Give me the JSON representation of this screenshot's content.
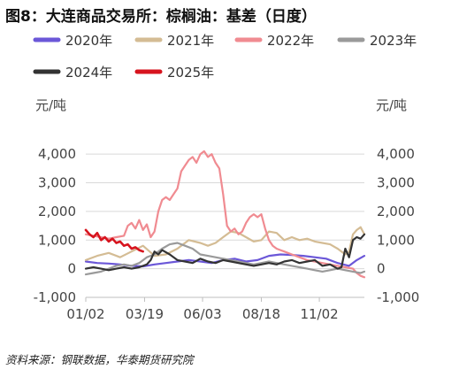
{
  "title": "图8：大连商品交易所：棕榈油：基差（日度）",
  "source": "资料来源：钢联数据，华泰期货研究院",
  "chart_data": {
    "type": "line",
    "title": "图8：大连商品交易所：棕榈油：基差（日度）",
    "unit_left": "元/吨",
    "unit_right": "元/吨",
    "ylim": [
      -1000,
      4500
    ],
    "yticks": [
      -1000,
      0,
      1000,
      2000,
      3000,
      4000
    ],
    "ytick_labels": [
      "-1,000",
      "0",
      "1,000",
      "2,000",
      "3,000",
      "4,000"
    ],
    "xticks": [
      0,
      77,
      153,
      230,
      306
    ],
    "xtick_labels": [
      "01/02",
      "03/19",
      "06/03",
      "08/18",
      "11/02"
    ],
    "xlim": [
      0,
      365
    ],
    "grid": true,
    "legend_position": "top",
    "series": [
      {
        "name": "2020年",
        "color": "#6b57d8",
        "x": [
          0,
          15,
          30,
          45,
          60,
          75,
          90,
          105,
          120,
          135,
          150,
          165,
          180,
          195,
          210,
          225,
          240,
          255,
          270,
          285,
          300,
          315,
          330,
          345,
          355,
          365
        ],
        "y": [
          250,
          200,
          180,
          150,
          100,
          80,
          150,
          200,
          250,
          300,
          250,
          200,
          300,
          350,
          250,
          300,
          450,
          500,
          480,
          450,
          400,
          350,
          200,
          100,
          300,
          450
        ]
      },
      {
        "name": "2021年",
        "color": "#d4bc94",
        "x": [
          0,
          15,
          30,
          45,
          60,
          75,
          90,
          105,
          120,
          135,
          150,
          160,
          170,
          180,
          190,
          200,
          210,
          220,
          230,
          240,
          250,
          260,
          270,
          280,
          290,
          300,
          310,
          320,
          330,
          340,
          345,
          350,
          355,
          360,
          365
        ],
        "y": [
          300,
          450,
          550,
          400,
          600,
          800,
          450,
          500,
          700,
          1000,
          900,
          800,
          900,
          1100,
          1300,
          1250,
          1100,
          950,
          1000,
          1300,
          1250,
          1000,
          1100,
          1000,
          1050,
          950,
          900,
          850,
          700,
          500,
          600,
          1200,
          1350,
          1450,
          1200
        ]
      },
      {
        "name": "2022年",
        "color": "#f08b91",
        "x": [
          0,
          10,
          20,
          30,
          40,
          50,
          55,
          60,
          65,
          70,
          75,
          80,
          85,
          90,
          95,
          100,
          105,
          110,
          115,
          120,
          125,
          130,
          135,
          140,
          145,
          150,
          155,
          160,
          165,
          170,
          175,
          180,
          185,
          190,
          195,
          200,
          205,
          210,
          215,
          220,
          225,
          230,
          235,
          240,
          245,
          250,
          255,
          260,
          270,
          280,
          290,
          300,
          310,
          320,
          330,
          340,
          350,
          355,
          360,
          365
        ],
        "y": [
          1200,
          1150,
          1100,
          1050,
          1100,
          1150,
          1500,
          1600,
          1400,
          1700,
          1350,
          1550,
          1100,
          1300,
          2000,
          2400,
          2500,
          2400,
          2600,
          2800,
          3400,
          3600,
          3800,
          3900,
          3700,
          4000,
          4100,
          3900,
          4000,
          3700,
          3500,
          2600,
          1500,
          1300,
          1400,
          1200,
          1300,
          1600,
          1800,
          1900,
          1800,
          1900,
          1400,
          1000,
          800,
          700,
          650,
          600,
          500,
          400,
          300,
          250,
          200,
          150,
          100,
          50,
          0,
          -150,
          -250,
          -300
        ]
      },
      {
        "name": "2023年",
        "color": "#9a9a9a",
        "x": [
          0,
          10,
          20,
          30,
          40,
          50,
          60,
          70,
          80,
          90,
          100,
          110,
          120,
          130,
          140,
          150,
          160,
          170,
          180,
          190,
          200,
          210,
          220,
          230,
          240,
          250,
          260,
          270,
          280,
          290,
          300,
          310,
          320,
          330,
          340,
          350,
          360,
          365
        ],
        "y": [
          -200,
          -150,
          -100,
          0,
          100,
          150,
          100,
          200,
          400,
          500,
          700,
          850,
          900,
          800,
          700,
          500,
          450,
          400,
          350,
          300,
          250,
          200,
          150,
          200,
          250,
          200,
          150,
          100,
          50,
          0,
          -50,
          -100,
          -50,
          0,
          -50,
          -100,
          -150,
          -100
        ]
      },
      {
        "name": "2024年",
        "color": "#333333",
        "x": [
          0,
          10,
          20,
          30,
          40,
          50,
          60,
          70,
          80,
          85,
          90,
          95,
          100,
          110,
          120,
          130,
          140,
          150,
          160,
          170,
          180,
          190,
          200,
          210,
          220,
          230,
          240,
          250,
          260,
          270,
          280,
          290,
          300,
          310,
          320,
          330,
          335,
          340,
          345,
          350,
          355,
          360,
          365
        ],
        "y": [
          0,
          50,
          0,
          -50,
          0,
          50,
          0,
          50,
          150,
          300,
          600,
          500,
          650,
          500,
          300,
          250,
          200,
          350,
          250,
          200,
          300,
          250,
          200,
          150,
          100,
          150,
          200,
          150,
          250,
          300,
          200,
          250,
          300,
          100,
          150,
          0,
          50,
          700,
          400,
          1000,
          1100,
          1050,
          1200
        ]
      },
      {
        "name": "2025年",
        "color": "#d7141e",
        "x": [
          0,
          5,
          10,
          15,
          20,
          25,
          30,
          35,
          40,
          45,
          50,
          55,
          60,
          65,
          70,
          75
        ],
        "y": [
          1350,
          1200,
          1100,
          1250,
          1000,
          1100,
          950,
          1050,
          900,
          950,
          800,
          850,
          700,
          750,
          650,
          600
        ]
      }
    ]
  }
}
